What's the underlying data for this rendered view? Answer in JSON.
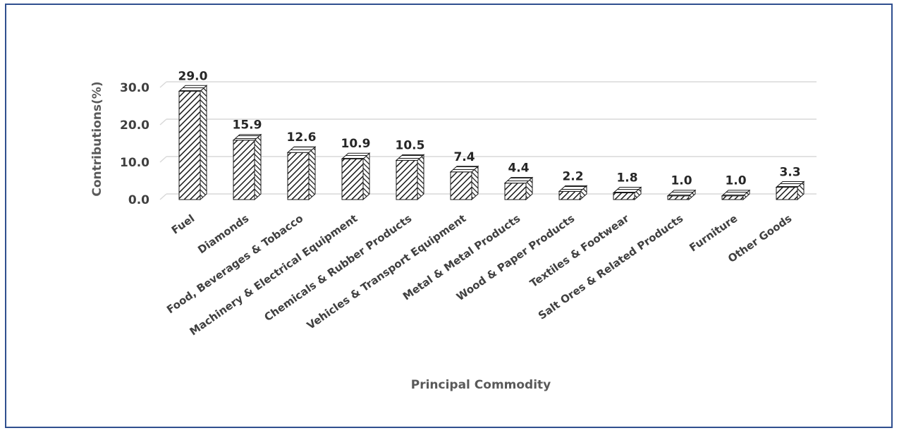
{
  "chart_data": {
    "type": "bar",
    "title": "",
    "xlabel": "Principal Commodity",
    "ylabel": "Contributions(%)",
    "ylim": [
      0,
      30
    ],
    "yticks": [
      0,
      10,
      20,
      30
    ],
    "ytick_labels": [
      "0.0",
      "10.0",
      "20.0",
      "30.0"
    ],
    "grid": true,
    "legend": "none",
    "categories": [
      "Fuel",
      "Diamonds",
      "Food, Beverages & Tobacco",
      "Machinery & Electrical Equipment",
      "Chemicals & Rubber Products",
      "Vehicles & Transport Equipment",
      "Metal & Metal Products",
      "Wood & Paper Products",
      "Textiles & Footwear",
      "Salt Ores & Related Products",
      "Furniture",
      "Other Goods"
    ],
    "values": [
      29.0,
      15.9,
      12.6,
      10.9,
      10.5,
      7.4,
      4.4,
      2.2,
      1.8,
      1.0,
      1.0,
      3.3
    ],
    "value_labels": [
      "29.0",
      "15.9",
      "12.6",
      "10.9",
      "10.5",
      "7.4",
      "4.4",
      "2.2",
      "1.8",
      "1.0",
      "1.0",
      "3.3"
    ],
    "colors": {
      "bar_stroke": "#1a1a1a",
      "grid": "#d9d9d9",
      "frame": "#2f4f8f"
    }
  }
}
